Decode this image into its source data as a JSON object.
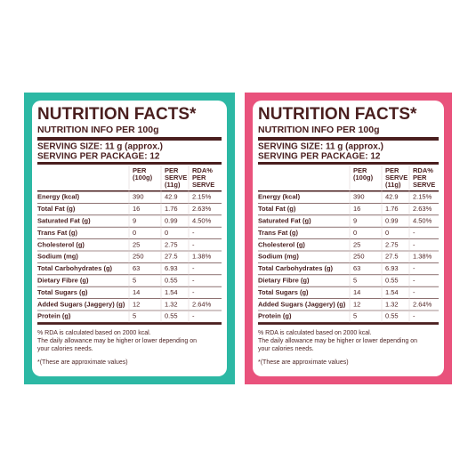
{
  "panels": [
    {
      "color": "#2cb8a4"
    },
    {
      "color": "#e9527c"
    }
  ],
  "label": {
    "title": "NUTRITION FACTS*",
    "subtitle": "NUTRITION INFO PER 100g",
    "serving_size": "SERVING SIZE: 11 g (approx.)",
    "serving_per_package": "SERVING PER PACKAGE: 12",
    "columns": [
      [
        "PER",
        "(100g)"
      ],
      [
        "PER",
        "SERVE",
        "(11g)"
      ],
      [
        "RDA%",
        "PER",
        "SERVE"
      ]
    ],
    "rows": [
      [
        "Energy (kcal)",
        "390",
        "42.9",
        "2.15%"
      ],
      [
        "Total Fat (g)",
        "16",
        "1.76",
        "2.63%"
      ],
      [
        "Saturated Fat (g)",
        "9",
        "0.99",
        "4.50%"
      ],
      [
        "Trans Fat (g)",
        "0",
        "0",
        "-"
      ],
      [
        "Cholesterol (g)",
        "25",
        "2.75",
        "-"
      ],
      [
        "Sodium (mg)",
        "250",
        "27.5",
        "1.38%"
      ],
      [
        "Total Carbohydrates (g)",
        "63",
        "6.93",
        "-"
      ],
      [
        "Dietary Fibre (g)",
        "5",
        "0.55",
        "-"
      ],
      [
        "Total Sugars (g)",
        "14",
        "1.54",
        "-"
      ],
      [
        "Added Sugars (Jaggery) (g)",
        "12",
        "1.32",
        "2.64%"
      ],
      [
        "Protein (g)",
        "5",
        "0.55",
        "-"
      ]
    ],
    "notes": [
      "% RDA is calculated based on 2000 kcal.",
      "The daily allowance may be higher or lower depending on",
      "your calories needs."
    ],
    "footnote": "*(These are approximate values)"
  }
}
